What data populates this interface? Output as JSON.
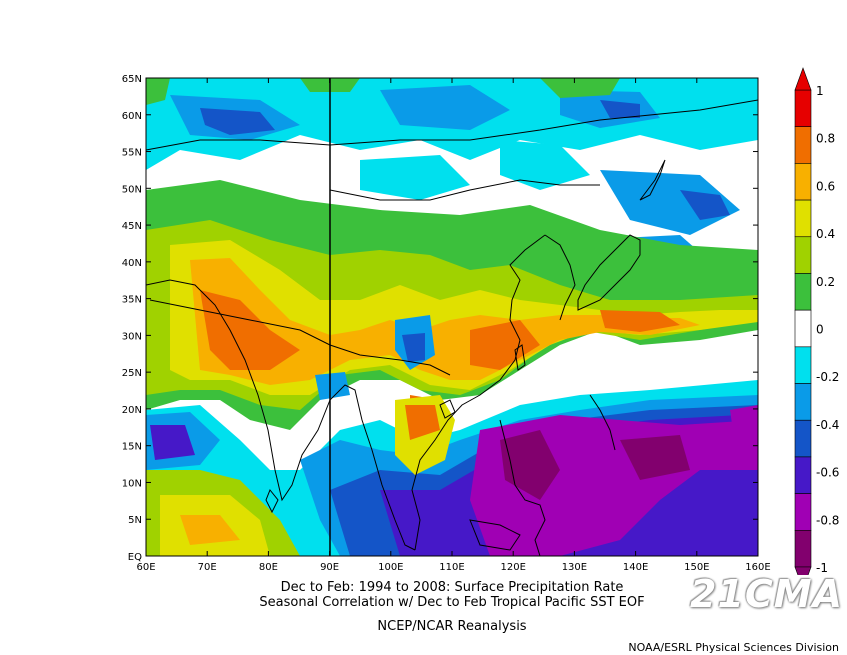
{
  "map": {
    "lon_labels": [
      "60E",
      "70E",
      "80E",
      "90E",
      "100E",
      "110E",
      "120E",
      "130E",
      "140E",
      "150E",
      "160E"
    ],
    "lat_labels": [
      "EQ",
      "5N",
      "10N",
      "15N",
      "20N",
      "25N",
      "30N",
      "35N",
      "40N",
      "45N",
      "50N",
      "55N",
      "60N",
      "65N"
    ],
    "lon_range": [
      60,
      160
    ],
    "lat_range": [
      0,
      65
    ],
    "marker_line_lon": 90
  },
  "colorbar": {
    "labels": [
      "1",
      "0.8",
      "0.6",
      "0.4",
      "0.2",
      "0",
      "-0.2",
      "-0.4",
      "-0.6",
      "-0.8",
      "-1"
    ],
    "colors": [
      "#e60000",
      "#f06e00",
      "#f8b000",
      "#e0e000",
      "#a0d200",
      "#3cc03c",
      "#ffffff",
      "#00e0ee",
      "#0a9be8",
      "#1455c8",
      "#4618c8",
      "#a000b4",
      "#82006e"
    ]
  },
  "captions": {
    "line1": "Dec to Feb: 1994 to 2008: Surface Precipitation Rate",
    "line2": "Seasonal Correlation w/ Dec to Feb Tropical Pacific SST EOF",
    "line3": "NCEP/NCAR Reanalysis"
  },
  "credit": "NOAA/ESRL Physical Sciences Division",
  "watermark": "21CMA"
}
